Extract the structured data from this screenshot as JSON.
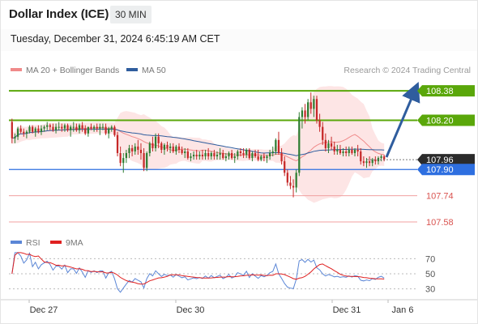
{
  "header": {
    "title": "Dollar Index (ICE)",
    "timeframe": "30 MIN",
    "datetime": "Tuesday, December 31, 2024 6:45:19 AM CET"
  },
  "legend": {
    "items": [
      {
        "label": "MA 20 + Bollinger Bands",
        "color": "#f08a8a",
        "icon": "legend-swatch"
      },
      {
        "label": "MA 50",
        "color": "#2f5d9e",
        "icon": "legend-swatch"
      }
    ],
    "credit": "Research © 2024 Trading Central"
  },
  "rsi_legend": {
    "items": [
      {
        "label": "RSI",
        "color": "#5b86d6"
      },
      {
        "label": "9MA",
        "color": "#e02020"
      }
    ]
  },
  "colors": {
    "up": "#2e7d32",
    "down": "#c62828",
    "band": "#fde0e0",
    "ma20": "#f08a8a",
    "ma50": "#2f5d9e",
    "green_level": "#5aa70a",
    "blue_level": "#2e6fe0",
    "red_level": "#f0a0a0",
    "arrow": "#2f5d9e",
    "last_price_bg": "#2b2b2b"
  },
  "chart_data": [
    {
      "type": "candlestick",
      "title": "Dollar Index (ICE)",
      "interval": "30 MIN",
      "x_ticks": [
        "Dec 27",
        "Dec 30",
        "Dec 31",
        "Jan 6"
      ],
      "ylim": [
        107.56,
        108.44
      ],
      "levels": [
        {
          "value": 108.38,
          "label": "108.38",
          "kind": "resistance"
        },
        {
          "value": 108.2,
          "label": "108.20",
          "kind": "resistance"
        },
        {
          "value": 107.96,
          "label": "107.96",
          "kind": "last"
        },
        {
          "value": 107.9,
          "label": "107.90",
          "kind": "pivot"
        },
        {
          "value": 107.74,
          "label": "107.74",
          "kind": "support"
        },
        {
          "value": 107.58,
          "label": "107.58",
          "kind": "support"
        }
      ],
      "last_price": 107.96,
      "forecast_target": 108.38,
      "candles": [
        [
          108.19,
          108.21,
          108.06,
          108.09
        ],
        [
          108.09,
          108.12,
          108.06,
          108.1
        ],
        [
          108.1,
          108.16,
          108.08,
          108.15
        ],
        [
          108.15,
          108.17,
          108.12,
          108.13
        ],
        [
          108.13,
          108.15,
          108.1,
          108.12
        ],
        [
          108.12,
          108.14,
          108.09,
          108.13
        ],
        [
          108.13,
          108.17,
          108.12,
          108.16
        ],
        [
          108.16,
          108.17,
          108.12,
          108.13
        ],
        [
          108.13,
          108.16,
          108.1,
          108.15
        ],
        [
          108.15,
          108.17,
          108.12,
          108.13
        ],
        [
          108.13,
          108.17,
          108.11,
          108.15
        ],
        [
          108.15,
          108.17,
          108.13,
          108.16
        ],
        [
          108.16,
          108.19,
          108.14,
          108.17
        ],
        [
          108.17,
          108.18,
          108.14,
          108.16
        ],
        [
          108.16,
          108.18,
          108.13,
          108.14
        ],
        [
          108.14,
          108.18,
          108.12,
          108.16
        ],
        [
          108.16,
          108.19,
          108.14,
          108.16
        ],
        [
          108.16,
          108.18,
          108.13,
          108.15
        ],
        [
          108.15,
          108.18,
          108.13,
          108.17
        ],
        [
          108.17,
          108.18,
          108.13,
          108.14
        ],
        [
          108.14,
          108.17,
          108.1,
          108.16
        ],
        [
          108.16,
          108.19,
          108.13,
          108.16
        ],
        [
          108.16,
          108.18,
          108.13,
          108.14
        ],
        [
          108.14,
          108.18,
          108.12,
          108.17
        ],
        [
          108.17,
          108.19,
          108.13,
          108.15
        ],
        [
          108.15,
          108.17,
          108.11,
          108.12
        ],
        [
          108.12,
          108.16,
          108.1,
          108.16
        ],
        [
          108.16,
          108.18,
          108.14,
          108.15
        ],
        [
          108.15,
          108.17,
          108.13,
          108.16
        ],
        [
          108.16,
          108.18,
          108.13,
          108.15
        ],
        [
          108.15,
          108.18,
          108.11,
          108.16
        ],
        [
          108.16,
          108.18,
          108.14,
          108.16
        ],
        [
          108.16,
          108.18,
          108.11,
          108.12
        ],
        [
          108.12,
          108.16,
          108.09,
          108.15
        ],
        [
          108.15,
          108.17,
          108.13,
          108.16
        ],
        [
          108.16,
          108.17,
          108.1,
          108.11
        ],
        [
          108.11,
          108.13,
          107.98,
          108.0
        ],
        [
          108.0,
          108.04,
          107.92,
          107.94
        ],
        [
          107.94,
          108.0,
          107.88,
          107.97
        ],
        [
          107.97,
          108.02,
          107.94,
          108.0
        ],
        [
          108.0,
          108.05,
          107.97,
          108.03
        ],
        [
          108.03,
          108.05,
          107.98,
          108.01
        ],
        [
          108.01,
          108.06,
          107.99,
          108.04
        ],
        [
          108.04,
          108.08,
          107.99,
          108.02
        ],
        [
          108.02,
          108.06,
          107.96,
          108.0
        ],
        [
          108.0,
          108.03,
          107.89,
          107.91
        ],
        [
          107.91,
          108.01,
          107.89,
          108.0
        ],
        [
          108.0,
          108.07,
          107.98,
          108.06
        ],
        [
          108.06,
          108.1,
          108.01,
          108.03
        ],
        [
          108.03,
          108.12,
          108.01,
          108.1
        ],
        [
          108.1,
          108.12,
          108.03,
          108.06
        ],
        [
          108.06,
          108.07,
          108.0,
          108.02
        ],
        [
          108.02,
          108.06,
          107.99,
          108.05
        ],
        [
          108.05,
          108.07,
          108.01,
          108.03
        ],
        [
          108.03,
          108.06,
          108.0,
          108.04
        ],
        [
          108.04,
          108.06,
          108.0,
          108.01
        ],
        [
          108.01,
          108.05,
          107.99,
          108.04
        ],
        [
          108.04,
          108.06,
          108.0,
          108.02
        ],
        [
          108.02,
          108.04,
          107.99,
          108.0
        ],
        [
          108.0,
          108.03,
          107.97,
          108.01
        ],
        [
          108.01,
          108.03,
          107.96,
          107.97
        ],
        [
          107.97,
          108.0,
          107.95,
          107.98
        ],
        [
          107.98,
          108.01,
          107.96,
          107.99
        ],
        [
          107.99,
          108.02,
          107.96,
          107.98
        ],
        [
          107.98,
          108.01,
          107.96,
          107.99
        ],
        [
          107.99,
          108.02,
          107.96,
          107.98
        ],
        [
          107.98,
          108.02,
          107.96,
          108.0
        ],
        [
          108.0,
          108.03,
          107.96,
          107.98
        ],
        [
          107.98,
          108.01,
          107.96,
          108.0
        ],
        [
          108.0,
          108.02,
          107.96,
          107.98
        ],
        [
          107.98,
          108.01,
          107.96,
          107.99
        ],
        [
          107.99,
          108.03,
          107.96,
          108.0
        ],
        [
          108.0,
          108.02,
          107.96,
          107.97
        ],
        [
          107.97,
          108.0,
          107.95,
          107.98
        ],
        [
          107.98,
          108.01,
          107.96,
          108.0
        ],
        [
          108.0,
          108.02,
          107.96,
          107.97
        ],
        [
          107.97,
          108.0,
          107.94,
          107.98
        ],
        [
          107.98,
          108.02,
          107.96,
          108.01
        ],
        [
          108.01,
          108.03,
          107.98,
          108.0
        ],
        [
          108.0,
          108.03,
          107.97,
          107.99
        ],
        [
          107.99,
          108.03,
          107.97,
          108.02
        ],
        [
          108.02,
          108.03,
          107.96,
          107.97
        ],
        [
          107.97,
          108.01,
          107.95,
          108.0
        ],
        [
          108.0,
          108.02,
          107.97,
          107.98
        ],
        [
          107.98,
          108.02,
          107.95,
          107.96
        ],
        [
          107.96,
          107.99,
          107.95,
          107.98
        ],
        [
          107.98,
          108.0,
          107.95,
          107.97
        ],
        [
          107.97,
          107.99,
          107.94,
          107.98
        ],
        [
          107.98,
          108.02,
          107.96,
          108.0
        ],
        [
          108.0,
          108.04,
          107.98,
          108.01
        ],
        [
          108.01,
          108.09,
          107.99,
          108.08
        ],
        [
          108.08,
          108.13,
          107.99,
          108.0
        ],
        [
          108.0,
          108.03,
          107.93,
          107.95
        ],
        [
          107.95,
          107.98,
          107.86,
          107.88
        ],
        [
          107.88,
          107.9,
          107.8,
          107.82
        ],
        [
          107.82,
          107.86,
          107.78,
          107.8
        ],
        [
          107.8,
          107.84,
          107.73,
          107.79
        ],
        [
          107.79,
          107.9,
          107.76,
          107.88
        ],
        [
          107.88,
          108.25,
          107.86,
          108.22
        ],
        [
          108.22,
          108.28,
          108.15,
          108.26
        ],
        [
          108.26,
          108.3,
          108.18,
          108.22
        ],
        [
          108.22,
          108.33,
          108.2,
          108.31
        ],
        [
          108.31,
          108.37,
          108.24,
          108.27
        ],
        [
          108.27,
          108.35,
          108.22,
          108.33
        ],
        [
          108.33,
          108.35,
          108.18,
          108.2
        ],
        [
          108.2,
          108.24,
          108.13,
          108.16
        ],
        [
          108.16,
          108.19,
          108.05,
          108.08
        ],
        [
          108.08,
          108.12,
          108.01,
          108.03
        ],
        [
          108.03,
          108.08,
          108.0,
          108.06
        ],
        [
          108.06,
          108.1,
          108.02,
          108.04
        ],
        [
          108.04,
          108.07,
          107.99,
          108.01
        ],
        [
          108.01,
          108.05,
          107.99,
          108.02
        ],
        [
          108.02,
          108.05,
          107.99,
          108.0
        ],
        [
          108.0,
          108.03,
          107.98,
          108.01
        ],
        [
          108.01,
          108.04,
          107.98,
          108.0
        ],
        [
          108.0,
          108.04,
          107.98,
          108.02
        ],
        [
          108.02,
          108.04,
          107.99,
          108.0
        ],
        [
          108.0,
          108.03,
          107.98,
          108.02
        ],
        [
          108.02,
          108.05,
          107.98,
          108.01
        ],
        [
          108.01,
          108.03,
          107.93,
          107.95
        ],
        [
          107.95,
          107.98,
          107.92,
          107.94
        ],
        [
          107.94,
          107.97,
          107.91,
          107.95
        ],
        [
          107.95,
          107.98,
          107.92,
          107.94
        ],
        [
          107.94,
          107.97,
          107.92,
          107.96
        ],
        [
          107.96,
          107.98,
          107.93,
          107.95
        ],
        [
          107.95,
          107.98,
          107.93,
          107.97
        ],
        [
          107.97,
          107.99,
          107.95,
          107.98
        ],
        [
          107.98,
          107.99,
          107.95,
          107.96
        ]
      ]
    },
    {
      "type": "line",
      "title": "RSI",
      "series": [
        {
          "name": "RSI"
        },
        {
          "name": "9MA"
        }
      ],
      "y_ticks": [
        "70",
        "50",
        "30"
      ],
      "ylim": [
        20,
        80
      ]
    }
  ]
}
